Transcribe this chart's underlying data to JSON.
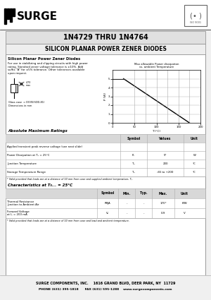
{
  "title1": "1N4729 THRU 1N4764",
  "title2": "SILICON PLANAR POWER ZENER DIODES",
  "bg_color": "#f0f0f0",
  "content_bg": "#f8f8f8",
  "white": "#ffffff",
  "company": "SURGE COMPONENTS, INC.",
  "address": "1616 GRAND BLVD, DEER PARK, NY  11729",
  "phone": "PHONE (631) 395-1818",
  "fax": "FAX (631) 595-1288",
  "web": "www.surgecomponents.com",
  "desc_title": "Silicon Planar Power Zener Diodes",
  "desc_text": "For use in stabilizing and clipping circuits with high power\nrating. Standard zener voltage tolerance is ±10%. Add\nsuffix \"A\" for ±5% tolerance. Other tolerances available\nupon request.",
  "glass_case": "Glass case  = DO35(SOD-81)",
  "dimensions": "Dimensions in mm",
  "abs_max_title": "Absolute Maximum Ratings",
  "abs_max_headers": [
    "",
    "Symbol",
    "Values",
    "Unit"
  ],
  "abs_max_rows": [
    [
      "Applied transient peak reverse voltage (see next slide)",
      "",
      "",
      ""
    ],
    [
      "Power Dissipation at T₀ = 25°C",
      "P₀",
      "5*",
      "W"
    ],
    [
      "Junction Temperature",
      "T₀",
      "200",
      "°C"
    ],
    [
      "Storage Temperature Range",
      "T₀",
      "-65 to +200",
      "°C"
    ]
  ],
  "abs_max_note": "* Valid provided that leads are at a distance of 10 mm from case and supplied ambient temperature, T₀",
  "char_title": "Characteristics at T₀... = 25°C",
  "char_headers": [
    "",
    "Symbol",
    "Min.",
    "Typ.",
    "Max.",
    "Unit"
  ],
  "char_rows": [
    [
      "Thermal Resistance\nJunction to Ambient Air",
      "RθJA",
      "-",
      "-",
      "170*",
      "K/W"
    ],
    [
      "Forward Voltage\nat I₀ = 200 mA",
      "V₀",
      "-",
      "-",
      "0.9",
      "V"
    ]
  ],
  "char_note": "* Valid provided that leads are at a distance of 10 mm from case and lead and ambient temperature.",
  "graph_title": "Max allowable Power dissipation\nvs. ambient Temperature",
  "graph_xlabel": "T (°C)",
  "graph_ylabel": "P (W)"
}
